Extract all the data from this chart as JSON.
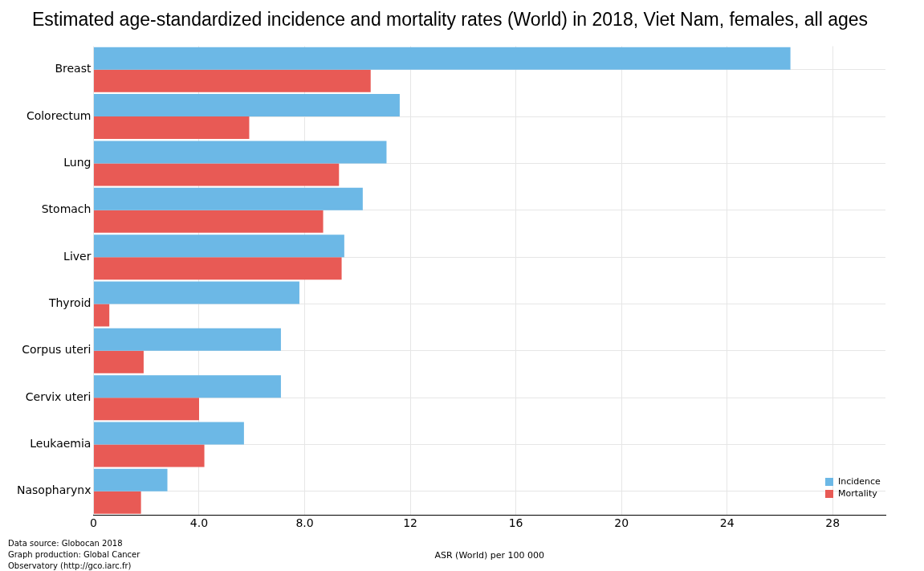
{
  "chart_data": {
    "type": "bar",
    "orientation": "horizontal",
    "title": "Estimated age-standardized incidence and mortality rates (World) in 2018, Viet Nam, females, all ages",
    "xlabel": "ASR (World) per 100 000",
    "categories": [
      "Breast",
      "Colorectum",
      "Lung",
      "Stomach",
      "Liver",
      "Thyroid",
      "Corpus uteri",
      "Cervix uteri",
      "Leukaemia",
      "Nasopharynx"
    ],
    "series": [
      {
        "name": "Incidence",
        "color": "#6cb8e6",
        "values": [
          26.4,
          11.6,
          11.1,
          10.2,
          9.5,
          7.8,
          7.1,
          7.1,
          5.7,
          2.8
        ]
      },
      {
        "name": "Mortality",
        "color": "#e85a55",
        "values": [
          10.5,
          5.9,
          9.3,
          8.7,
          9.4,
          0.6,
          1.9,
          4.0,
          4.2,
          1.8
        ]
      }
    ],
    "xlim": [
      0,
      30
    ],
    "xticks": [
      0,
      {
        "value": 4,
        "label": "4.0"
      },
      {
        "value": 8,
        "label": "8.0"
      },
      12,
      16,
      20,
      24,
      28
    ],
    "grid": true,
    "legend": "bottom right",
    "annotations": [
      "Data source: Globocan 2018\nGraph production: Global Cancer\nObservatory (http://gco.iarc.fr)"
    ]
  }
}
